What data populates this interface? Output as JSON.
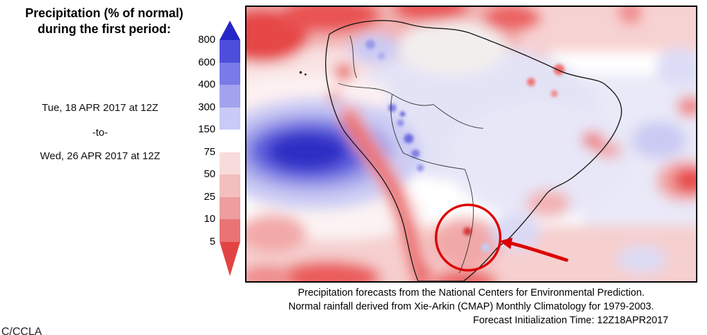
{
  "panel": {
    "title_line1": "Precipitation (% of normal)",
    "title_line2": "during the first period:",
    "date_from": "Tue, 18 APR 2017 at 12Z",
    "date_sep": "-to-",
    "date_to": "Wed, 26 APR 2017 at 12Z"
  },
  "colorbar": {
    "labels": [
      "800",
      "600",
      "400",
      "300",
      "150",
      "75",
      "50",
      "25",
      "10",
      "5"
    ],
    "segments": [
      {
        "name": "gt-800",
        "color": "#2626c6",
        "arrow": "up"
      },
      {
        "name": "600-800",
        "color": "#4e4edc"
      },
      {
        "name": "400-600",
        "color": "#7a7ae8"
      },
      {
        "name": "300-400",
        "color": "#a2a2ef"
      },
      {
        "name": "150-300",
        "color": "#cacaf6"
      },
      {
        "name": "75-150",
        "color": "#ffffff"
      },
      {
        "name": "50-75",
        "color": "#f8dcdc"
      },
      {
        "name": "25-50",
        "color": "#f3bebe"
      },
      {
        "name": "10-25",
        "color": "#ee9e9e"
      },
      {
        "name": "5-10",
        "color": "#e97474"
      },
      {
        "name": "lt-5",
        "color": "#e24444",
        "arrow": "down"
      }
    ]
  },
  "map": {
    "annotation_color": "#dd0000"
  },
  "caption": {
    "line1": "Precipitation forecasts from the National Centers for Environmental Prediction.",
    "line2": "Normal rainfall derived from Xie-Arkin (CMAP) Monthly Climatology for 1979-2003.",
    "line3": "Forecast Initialization Time: 12Z18APR2017"
  },
  "corner_fragment": "C/CCLA"
}
